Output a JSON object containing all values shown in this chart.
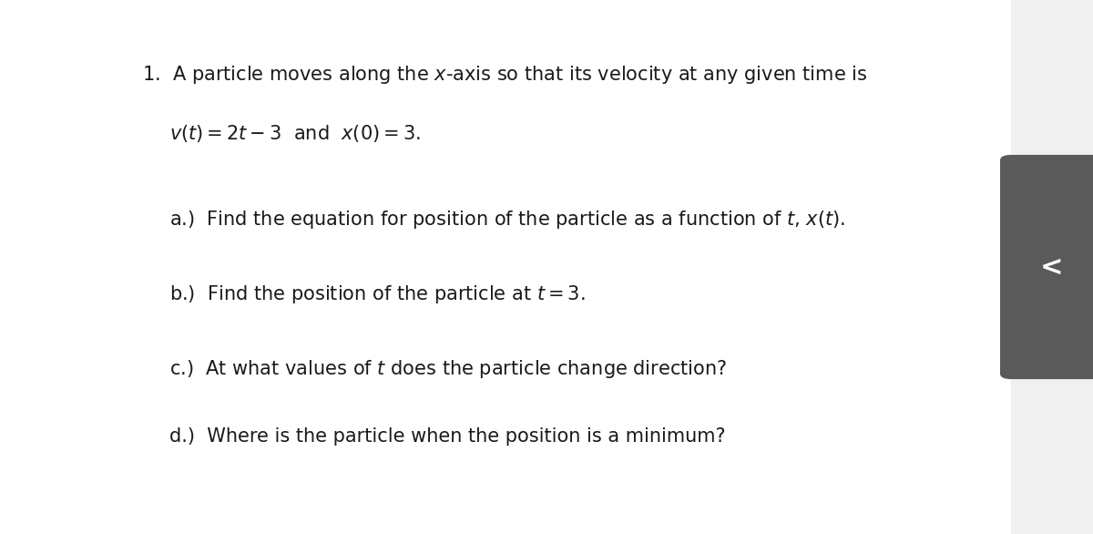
{
  "background_color": "#f0f0f0",
  "content_bg": "#ffffff",
  "line1": "1.  A particle moves along the ",
  "line1_xaxis": "x",
  "line1_rest": "-axis so that its velocity at any given time is",
  "line2_math": "$v(t) = 2t - 3$",
  "line2_and": " and ",
  "line2_math2": "$x(0) = 3$",
  "line2_period": ".",
  "qa": "a.)  Find the equation for position of the particle as a function of ",
  "qa_t": "$t$",
  "qa_comma": ", ",
  "qa_xt": "$x(t)$",
  "qa_period": ".",
  "qb": "b.)  Find the position of the particle at ",
  "qb_t": "$t = 3$",
  "qb_period": ".",
  "qc": "c.)  At what values of ",
  "qc_t": "$t$",
  "qc_rest": " does the particle change direction?",
  "qd": "d.)  Where is the particle when the position is a minimum?",
  "arrow_color": "#555555",
  "arrow_bg": "#666666",
  "text_color": "#1a1a1a",
  "fontsize_main": 15,
  "fontsize_sub": 15
}
